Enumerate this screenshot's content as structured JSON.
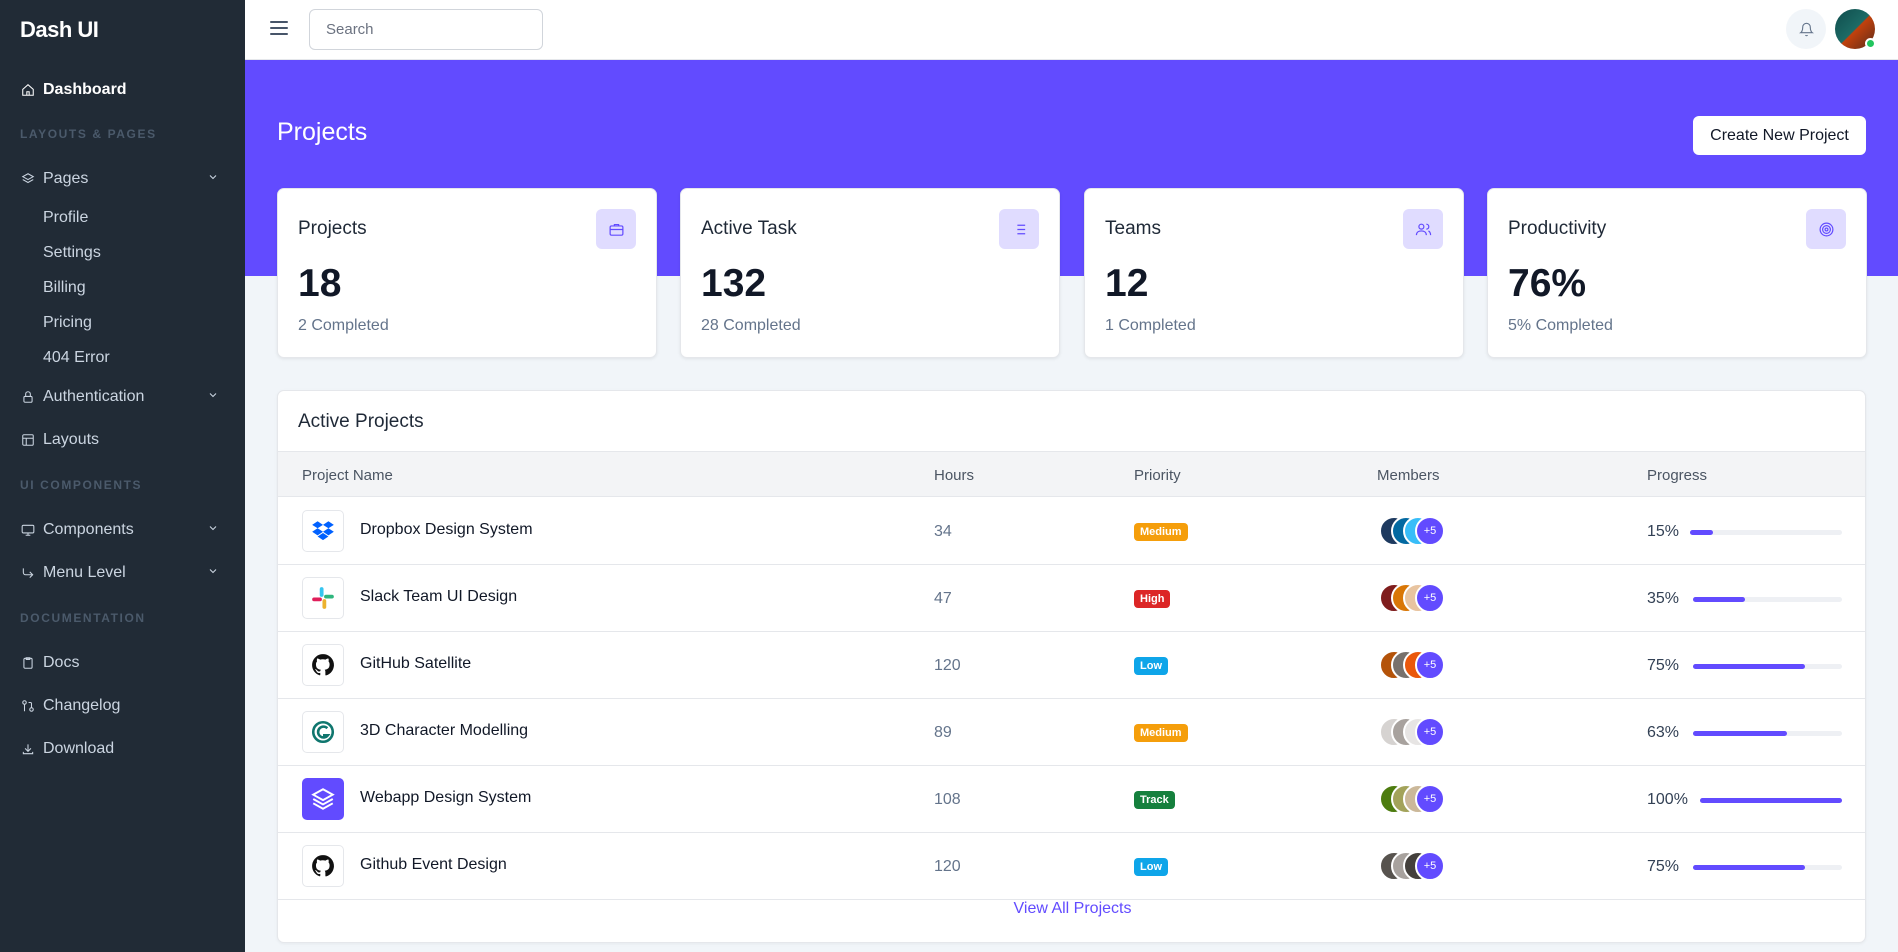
{
  "brand": "Dash UI",
  "sidebar": {
    "dashboard": "Dashboard",
    "section_layouts": "LAYOUTS & PAGES",
    "pages": "Pages",
    "pages_sub": [
      "Profile",
      "Settings",
      "Billing",
      "Pricing",
      "404 Error"
    ],
    "authentication": "Authentication",
    "layouts": "Layouts",
    "section_ui": "UI COMPONENTS",
    "components": "Components",
    "menu_level": "Menu Level",
    "section_docs": "DOCUMENTATION",
    "docs": "Docs",
    "changelog": "Changelog",
    "download": "Download"
  },
  "topbar": {
    "search_placeholder": "Search"
  },
  "header": {
    "title": "Projects",
    "create_button": "Create New Project"
  },
  "stats": [
    {
      "title": "Projects",
      "value": "18",
      "sub": "2 Completed",
      "icon": "briefcase-icon"
    },
    {
      "title": "Active Task",
      "value": "132",
      "sub": "28 Completed",
      "icon": "list-icon"
    },
    {
      "title": "Teams",
      "value": "12",
      "sub": "1 Completed",
      "icon": "users-icon"
    },
    {
      "title": "Productivity",
      "value": "76%",
      "sub": "5% Completed",
      "icon": "target-icon"
    }
  ],
  "active_projects": {
    "title": "Active Projects",
    "columns": [
      "Project Name",
      "Hours",
      "Priority",
      "Members",
      "Progress"
    ],
    "rows": [
      {
        "name": "Dropbox Design System",
        "hours": "34",
        "priority": "Medium",
        "priority_color": "#f59e0b",
        "members_extra": "+5",
        "progress": "15%",
        "progress_value": 15,
        "logo": "dropbox-icon"
      },
      {
        "name": "Slack Team UI Design",
        "hours": "47",
        "priority": "High",
        "priority_color": "#dc2626",
        "members_extra": "+5",
        "progress": "35%",
        "progress_value": 35,
        "logo": "slack-icon"
      },
      {
        "name": "GitHub Satellite",
        "hours": "120",
        "priority": "Low",
        "priority_color": "#0ea5e9",
        "members_extra": "+5",
        "progress": "75%",
        "progress_value": 75,
        "logo": "github-icon"
      },
      {
        "name": "3D Character Modelling",
        "hours": "89",
        "priority": "Medium",
        "priority_color": "#f59e0b",
        "members_extra": "+5",
        "progress": "63%",
        "progress_value": 63,
        "logo": "3d-logo-icon"
      },
      {
        "name": "Webapp Design System",
        "hours": "108",
        "priority": "Track",
        "priority_color": "#15803d",
        "members_extra": "+5",
        "progress": "100%",
        "progress_value": 100,
        "logo": "layers-icon"
      },
      {
        "name": "Github Event Design",
        "hours": "120",
        "priority": "Low",
        "priority_color": "#0ea5e9",
        "members_extra": "+5",
        "progress": "75%",
        "progress_value": 75,
        "logo": "github-icon"
      }
    ],
    "view_all": "View All Projects"
  },
  "colors": {
    "accent": "#624bff",
    "sidebar": "#212b36"
  }
}
